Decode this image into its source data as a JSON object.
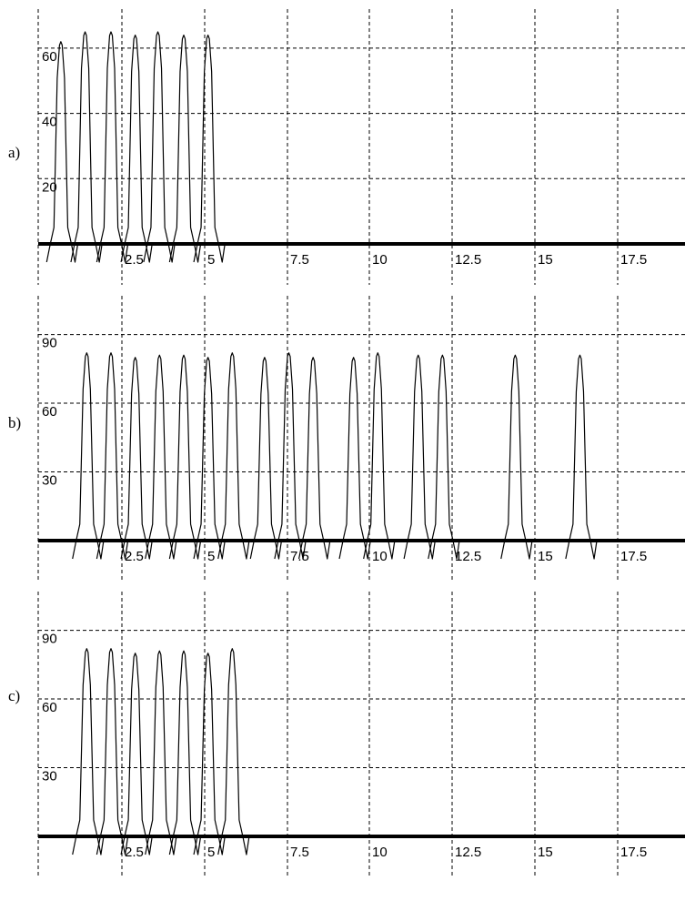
{
  "chart_data": [
    {
      "type": "line",
      "panel_label": "a)",
      "xlim": [
        -0.5,
        19.5
      ],
      "ylim": [
        0,
        65
      ],
      "x_ticks": [
        2.5,
        5,
        7.5,
        10,
        12.5,
        15,
        17.5
      ],
      "x_tick_labels": [
        "2.5",
        "5",
        "7.5",
        "10",
        "12.5",
        "15",
        "17.5"
      ],
      "y_ticks": [
        20,
        40,
        60
      ],
      "y_tick_labels": [
        "20",
        "40",
        "60"
      ],
      "grid": true,
      "peaks": {
        "x": [
          0.2,
          0.95,
          1.75,
          2.5,
          3.2,
          4.0,
          4.75
        ],
        "y": [
          62,
          65,
          65,
          64,
          65,
          64,
          64
        ]
      }
    },
    {
      "type": "line",
      "panel_label": "b)",
      "xlim": [
        -0.5,
        19.5
      ],
      "ylim": [
        0,
        95
      ],
      "x_ticks": [
        2.5,
        5,
        7.5,
        10,
        12.5,
        15,
        17.5
      ],
      "x_tick_labels": [
        "2.5",
        "5",
        "7.5",
        "10",
        "12.5",
        "15",
        "17.5"
      ],
      "y_ticks": [
        30,
        60,
        90
      ],
      "y_tick_labels": [
        "30",
        "60",
        "90"
      ],
      "grid": true,
      "peaks": {
        "x": [
          1.0,
          1.75,
          2.5,
          3.25,
          4.0,
          4.75,
          5.5,
          6.5,
          7.25,
          8.0,
          9.25,
          10.0,
          11.25,
          12.0,
          14.25,
          16.25
        ],
        "y": [
          82,
          82,
          80,
          81,
          81,
          80,
          82,
          80,
          82,
          80,
          80,
          82,
          81,
          81,
          81,
          81
        ]
      }
    },
    {
      "type": "line",
      "panel_label": "c)",
      "xlim": [
        -0.5,
        19.5
      ],
      "ylim": [
        0,
        95
      ],
      "x_ticks": [
        2.5,
        5,
        7.5,
        10,
        12.5,
        15,
        17.5
      ],
      "x_tick_labels": [
        "2.5",
        "5",
        "7.5",
        "10",
        "12.5",
        "15",
        "17.5"
      ],
      "y_ticks": [
        30,
        60,
        90
      ],
      "y_tick_labels": [
        "30",
        "60",
        "90"
      ],
      "grid": true,
      "peaks": {
        "x": [
          1.0,
          1.75,
          2.5,
          3.25,
          4.0,
          4.75,
          5.5
        ],
        "y": [
          82,
          82,
          80,
          81,
          81,
          80,
          82
        ]
      }
    }
  ]
}
